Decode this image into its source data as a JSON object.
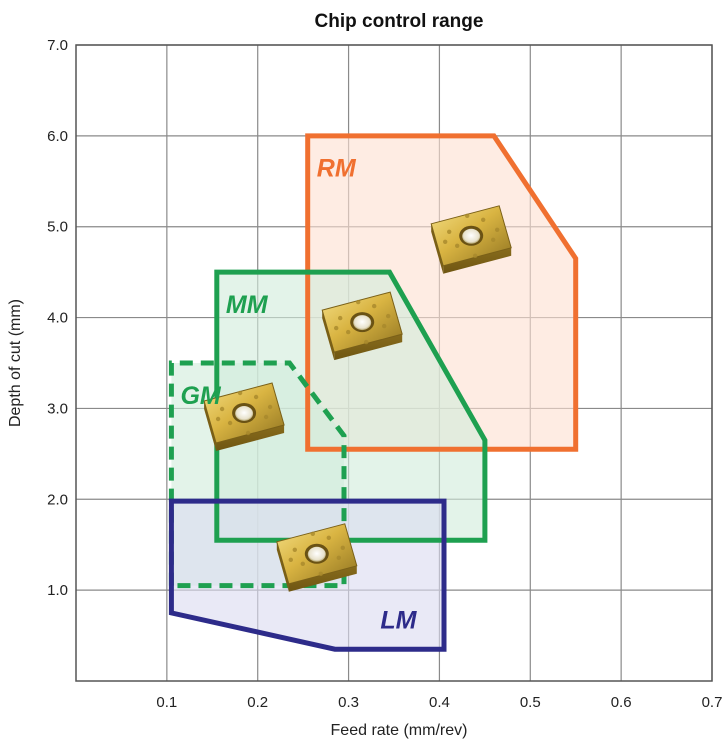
{
  "chart_data": {
    "type": "area",
    "title": "Chip control range",
    "xlabel": "Feed rate (mm/rev)",
    "ylabel": "Depth of cut (mm)",
    "xlim": [
      0,
      0.7
    ],
    "ylim": [
      0,
      7.0
    ],
    "x_ticks": [
      "0.1",
      "0.2",
      "0.3",
      "0.4",
      "0.5",
      "0.6",
      "0.7"
    ],
    "y_ticks": [
      "1.0",
      "2.0",
      "3.0",
      "4.0",
      "5.0",
      "6.0",
      "7.0"
    ],
    "grid": true,
    "regions": [
      {
        "name": "RM",
        "color": "#f07030",
        "fill": "#fde0d2",
        "dashed": false,
        "points": [
          [
            0.255,
            2.55
          ],
          [
            0.255,
            6.0
          ],
          [
            0.46,
            6.0
          ],
          [
            0.55,
            4.65
          ],
          [
            0.55,
            2.55
          ]
        ]
      },
      {
        "name": "MM",
        "color": "#1ea050",
        "fill": "#d2ecdc",
        "dashed": false,
        "points": [
          [
            0.155,
            1.55
          ],
          [
            0.155,
            4.5
          ],
          [
            0.345,
            4.5
          ],
          [
            0.45,
            2.65
          ],
          [
            0.45,
            1.55
          ]
        ]
      },
      {
        "name": "GM",
        "color": "#1ea050",
        "fill": "#d2ecdc",
        "dashed": true,
        "points": [
          [
            0.105,
            1.05
          ],
          [
            0.105,
            3.5
          ],
          [
            0.235,
            3.5
          ],
          [
            0.295,
            2.7
          ],
          [
            0.295,
            1.05
          ]
        ]
      },
      {
        "name": "LM",
        "color": "#2d2b8a",
        "fill": "#dcdcf0",
        "dashed": false,
        "points": [
          [
            0.105,
            0.75
          ],
          [
            0.105,
            1.98
          ],
          [
            0.405,
            1.98
          ],
          [
            0.405,
            0.35
          ],
          [
            0.285,
            0.35
          ]
        ]
      }
    ],
    "label_positions": [
      {
        "name": "RM",
        "x": 0.265,
        "y": 5.55
      },
      {
        "name": "MM",
        "x": 0.165,
        "y": 4.05
      },
      {
        "name": "GM",
        "x": 0.115,
        "y": 3.05
      },
      {
        "name": "LM",
        "x": 0.335,
        "y": 0.58
      }
    ],
    "inserts": [
      {
        "icon": "rm-insert-icon",
        "x": 0.435,
        "y": 4.9
      },
      {
        "icon": "mm-insert-icon",
        "x": 0.315,
        "y": 3.95
      },
      {
        "icon": "gm-insert-icon",
        "x": 0.185,
        "y": 2.95
      },
      {
        "icon": "lm-insert-icon",
        "x": 0.265,
        "y": 1.4
      }
    ]
  }
}
